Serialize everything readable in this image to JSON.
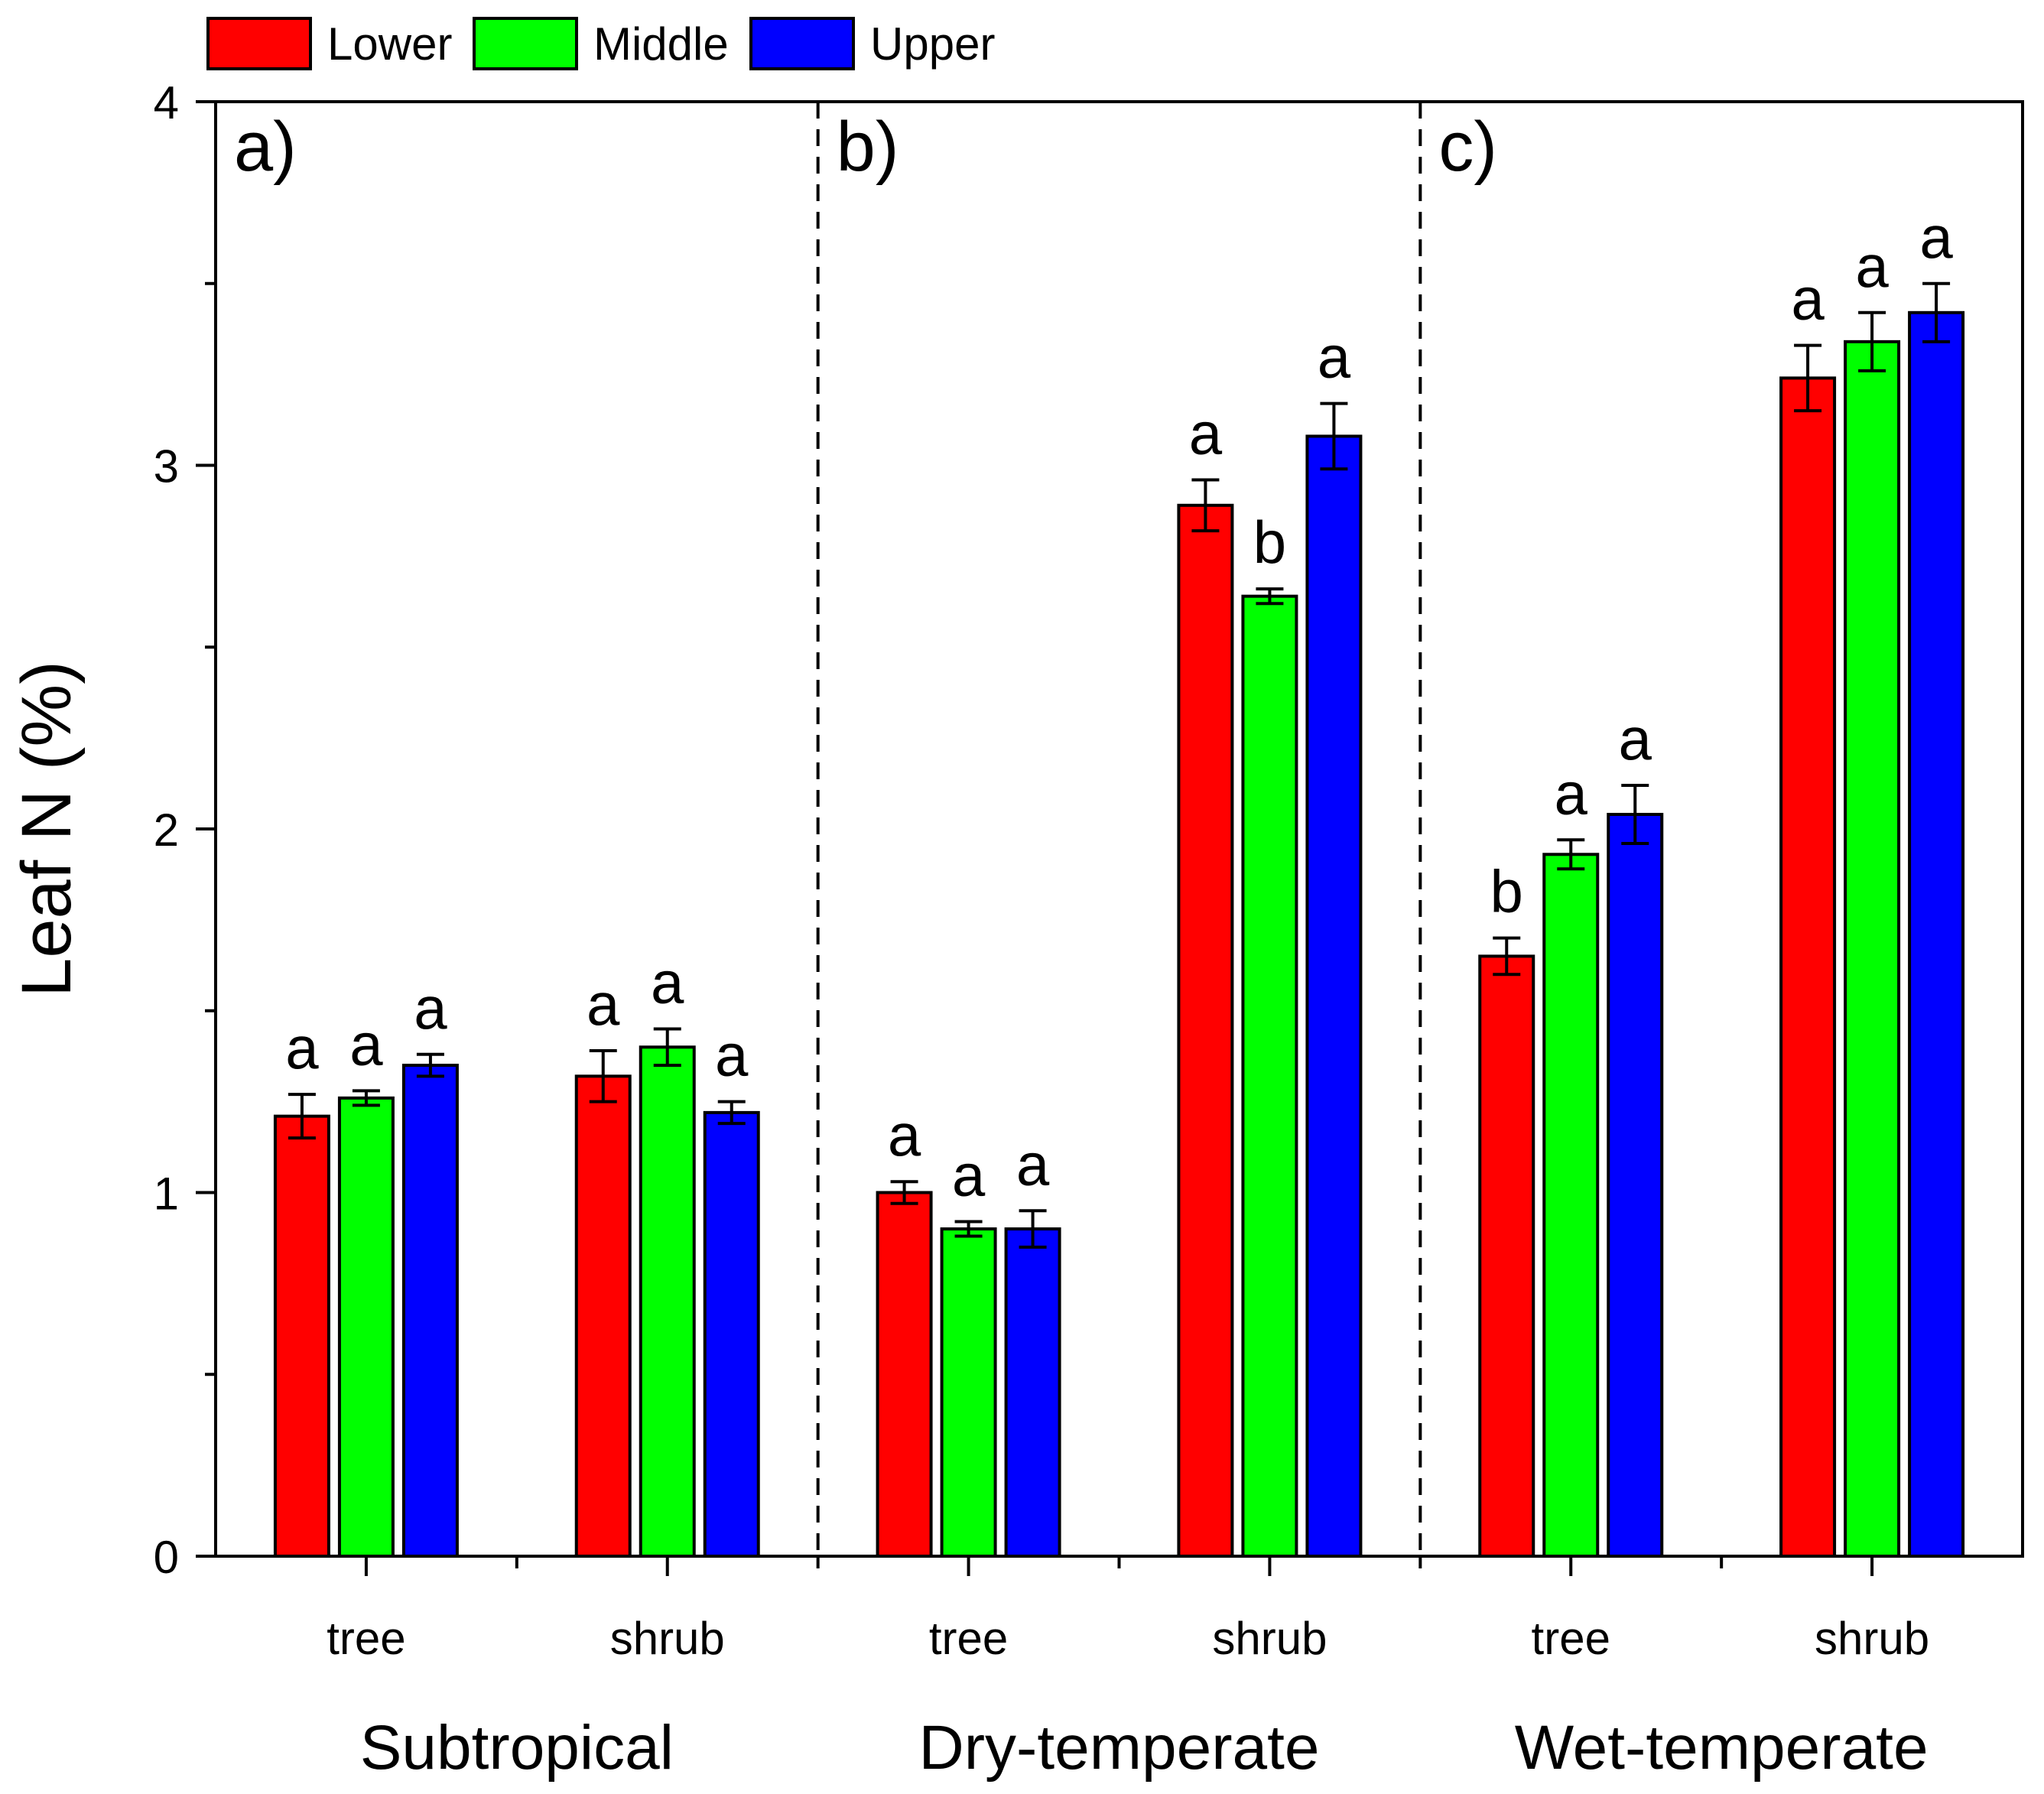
{
  "chart_data": {
    "type": "bar",
    "ylabel": "Leaf N (%)",
    "ylim": [
      0,
      4
    ],
    "yticks": [
      0,
      1,
      2,
      3,
      4
    ],
    "series_names": [
      "Lower",
      "Middle",
      "Upper"
    ],
    "colors": {
      "Lower": "#ff0000",
      "Middle": "#00ff00",
      "Upper": "#0000ff",
      "errorbar": "#000000"
    },
    "legend": {
      "position": "top-left",
      "entries": [
        "Lower",
        "Middle",
        "Upper"
      ]
    },
    "panels": [
      {
        "label": "a)",
        "region": "Subtropical",
        "groups": [
          {
            "category": "tree",
            "values": [
              1.21,
              1.26,
              1.35
            ],
            "errors": [
              0.06,
              0.02,
              0.03
            ],
            "letters": [
              "a",
              "a",
              "a"
            ]
          },
          {
            "category": "shrub",
            "values": [
              1.32,
              1.4,
              1.22
            ],
            "errors": [
              0.07,
              0.05,
              0.03
            ],
            "letters": [
              "a",
              "a",
              "a"
            ]
          }
        ]
      },
      {
        "label": "b)",
        "region": "Dry-temperate",
        "groups": [
          {
            "category": "tree",
            "values": [
              1.0,
              0.9,
              0.9
            ],
            "errors": [
              0.03,
              0.02,
              0.05
            ],
            "letters": [
              "a",
              "a",
              "a"
            ]
          },
          {
            "category": "shrub",
            "values": [
              2.89,
              2.64,
              3.08
            ],
            "errors": [
              0.07,
              0.02,
              0.09
            ],
            "letters": [
              "a",
              "b",
              "a"
            ]
          }
        ]
      },
      {
        "label": "c)",
        "region": "Wet-temperate",
        "groups": [
          {
            "category": "tree",
            "values": [
              1.65,
              1.93,
              2.04
            ],
            "errors": [
              0.05,
              0.04,
              0.08
            ],
            "letters": [
              "b",
              "a",
              "a"
            ]
          },
          {
            "category": "shrub",
            "values": [
              3.24,
              3.34,
              3.42
            ],
            "errors": [
              0.09,
              0.08,
              0.08
            ],
            "letters": [
              "a",
              "a",
              "a"
            ]
          }
        ]
      }
    ]
  }
}
